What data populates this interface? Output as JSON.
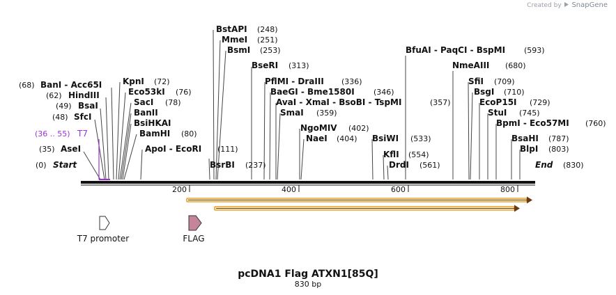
{
  "credit": {
    "prefix": "Created by",
    "brand": "SnapGene"
  },
  "title": "pcDNA1 Flag ATXN1[85Q]",
  "subtitle": "830 bp",
  "start_label": "Start",
  "end_label": "End",
  "start_pos": "(0)",
  "end_pos": "(830)",
  "ticks": [
    "200",
    "400",
    "600",
    "800"
  ],
  "t7_site": {
    "name": "T7",
    "pos": "(36 .. 55)",
    "color": "#9b30d9"
  },
  "features": [
    {
      "name": "T7 promoter",
      "icon": "white-arrow"
    },
    {
      "name": "FLAG",
      "icon": "mauve-arrow"
    }
  ],
  "sites": [
    {
      "id": "asei",
      "text": "AseI",
      "pos": "(35)"
    },
    {
      "id": "sfci",
      "text": "SfcI",
      "pos": "(48)"
    },
    {
      "id": "bsai",
      "text": "BsaI",
      "pos": "(49)"
    },
    {
      "id": "hindiii",
      "text": "HindIII",
      "pos": "(62)"
    },
    {
      "id": "bani-acc65i",
      "text": "BanI  - Acc65I",
      "pos": "(68)"
    },
    {
      "id": "kpni",
      "text": "KpnI",
      "pos": "(72)"
    },
    {
      "id": "eco53ki",
      "text": "Eco53kI",
      "pos": "(76)"
    },
    {
      "id": "saci",
      "text": "SacI",
      "pos": "(78)"
    },
    {
      "id": "banii",
      "text": "BanII",
      "pos": ""
    },
    {
      "id": "bsihkai",
      "text": "BsiHKAI",
      "pos": ""
    },
    {
      "id": "bamhi",
      "text": "BamHI",
      "pos": "(80)"
    },
    {
      "id": "apoi-ecori",
      "text": "ApoI  - EcoRI",
      "pos": "(111)"
    },
    {
      "id": "bstapi",
      "text": "BstAPI",
      "pos": "(248)"
    },
    {
      "id": "mmei",
      "text": "MmeI",
      "pos": "(251)"
    },
    {
      "id": "bsmi",
      "text": "BsmI",
      "pos": "(253)"
    },
    {
      "id": "bsrbi",
      "text": "BsrBI",
      "pos": "(237)"
    },
    {
      "id": "bseri",
      "text": "BseRI",
      "pos": "(313)"
    },
    {
      "id": "pflmi-draiii",
      "text": "PflMI  - DraIII",
      "pos": "(336)"
    },
    {
      "id": "baegi-bme1580i",
      "text": "BaeGI  - Bme1580I",
      "pos": "(346)"
    },
    {
      "id": "avai-xmai-bsobi-tspmi",
      "text": "AvaI  - XmaI  - BsoBI  - TspMI",
      "pos": "(357)"
    },
    {
      "id": "smai",
      "text": "SmaI",
      "pos": "(359)"
    },
    {
      "id": "ngomiv",
      "text": "NgoMIV",
      "pos": "(402)"
    },
    {
      "id": "naei",
      "text": "NaeI",
      "pos": "(404)"
    },
    {
      "id": "bfuai-paqci-bspmi",
      "text": "BfuAI  - PaqCI  - BspMI",
      "pos": "(593)"
    },
    {
      "id": "bsiwi",
      "text": "BsiWI",
      "pos": "(533)"
    },
    {
      "id": "kfli",
      "text": "KflI",
      "pos": "(554)"
    },
    {
      "id": "drdi",
      "text": "DrdI",
      "pos": "(561)"
    },
    {
      "id": "nmeaiii",
      "text": "NmeAIII",
      "pos": "(680)"
    },
    {
      "id": "sfii",
      "text": "SfiI",
      "pos": "(709)"
    },
    {
      "id": "bsgi",
      "text": "BsgI",
      "pos": "(710)"
    },
    {
      "id": "ecop15i",
      "text": "EcoP15I",
      "pos": "(729)"
    },
    {
      "id": "stui",
      "text": "StuI",
      "pos": "(745)"
    },
    {
      "id": "bpmi-eco57mi",
      "text": "BpmI  - Eco57MI",
      "pos": "(760)"
    },
    {
      "id": "bsahi",
      "text": "BsaHI",
      "pos": "(787)"
    },
    {
      "id": "blpi",
      "text": "BlpI",
      "pos": "(803)"
    }
  ]
}
